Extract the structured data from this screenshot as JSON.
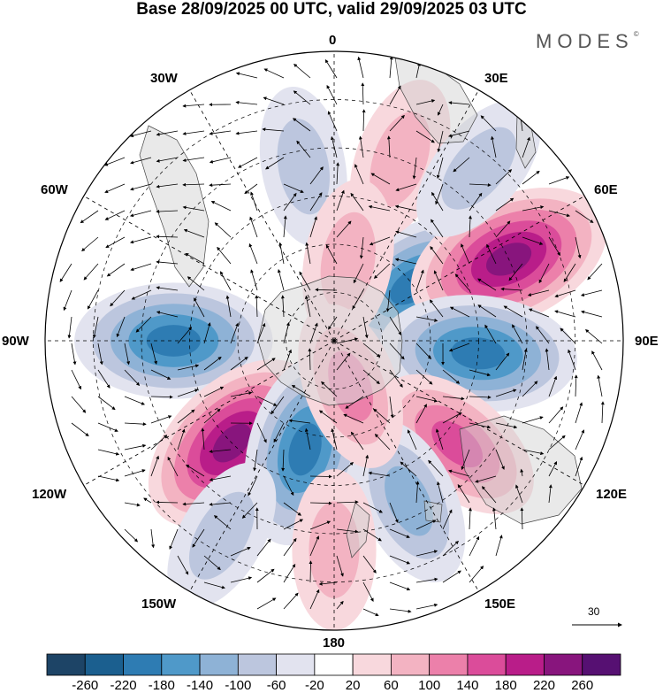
{
  "title": "Base 28/09/2025 00 UTC, valid 29/09/2025 03 UTC",
  "brand": "MODES",
  "brand_mark": "©",
  "longitude_labels": {
    "top": "0",
    "upper_left": "30W",
    "upper_right": "30E",
    "left_upper": "60W",
    "right_upper": "60E",
    "left": "90W",
    "right": "90E",
    "left_lower": "120W",
    "right_lower": "120E",
    "lower_left": "150W",
    "lower_right": "150E",
    "bottom": "180"
  },
  "vector_scale": {
    "value": "30"
  },
  "colorbar": {
    "colors": [
      "#1d4466",
      "#1b5f8f",
      "#2e7cb3",
      "#4f99c9",
      "#8eb2d6",
      "#bcc6de",
      "#e2e3ef",
      "#ffffff",
      "#f8d8dd",
      "#f3b3c2",
      "#ec80aa",
      "#db4c9a",
      "#b91d89",
      "#88157d",
      "#561072"
    ],
    "ticks": [
      "-260",
      "-220",
      "-180",
      "-140",
      "-100",
      "-60",
      "-20",
      "20",
      "60",
      "100",
      "140",
      "180",
      "220",
      "260"
    ]
  },
  "anomaly_centers": [
    {
      "lon": -90,
      "lat": -40,
      "value": -230
    },
    {
      "lon": 55,
      "lat": -60,
      "value": -200
    },
    {
      "lon": 65,
      "lat": -30,
      "value": 270
    },
    {
      "lon": 95,
      "lat": -45,
      "value": -230
    },
    {
      "lon": -135,
      "lat": -45,
      "value": 250
    },
    {
      "lon": -165,
      "lat": -55,
      "value": -220
    },
    {
      "lon": 130,
      "lat": -40,
      "value": 160
    },
    {
      "lon": 155,
      "lat": -35,
      "value": -130
    },
    {
      "lon": -10,
      "lat": -35,
      "value": -80
    },
    {
      "lon": 20,
      "lat": -30,
      "value": 100
    },
    {
      "lon": 10,
      "lat": -65,
      "value": 100
    },
    {
      "lon": -150,
      "lat": -20,
      "value": -80
    },
    {
      "lon": 160,
      "lat": -75,
      "value": 120
    },
    {
      "lon": 180,
      "lat": -25,
      "value": 80
    },
    {
      "lon": 40,
      "lat": -20,
      "value": -90
    }
  ]
}
